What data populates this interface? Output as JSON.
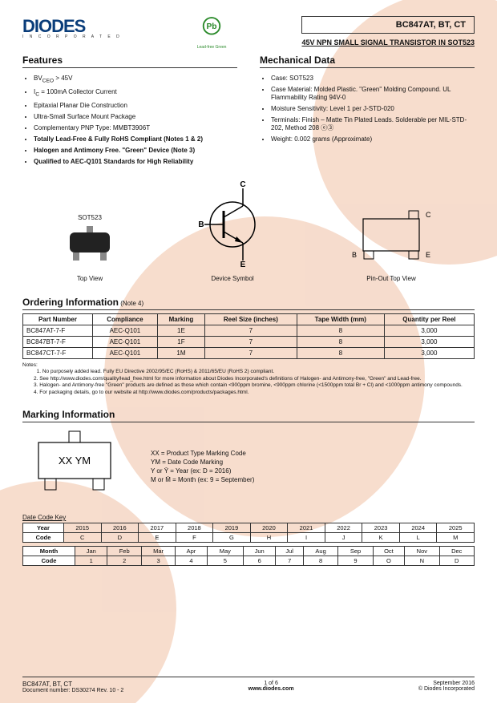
{
  "header": {
    "logo_text": "DIODES",
    "logo_sub": "I N C O R P O R A T E D",
    "pb_label": "Pb",
    "pb_sub": "Lead-free Green",
    "part_title": "BC847AT, BT, CT",
    "subtitle": "45V NPN SMALL SIGNAL TRANSISTOR IN SOT523"
  },
  "features": {
    "title": "Features",
    "items": [
      {
        "html": "BV<sub>CEO</sub> > 45V",
        "bold": false
      },
      {
        "html": "I<sub>C</sub> = 100mA Collector Current",
        "bold": false
      },
      {
        "html": "Epitaxial Planar Die Construction",
        "bold": false
      },
      {
        "html": "Ultra-Small Surface Mount Package",
        "bold": false
      },
      {
        "html": "Complementary PNP Type: MMBT3906T",
        "bold": false
      },
      {
        "html": "Totally Lead-Free & Fully RoHS Compliant (Notes 1 & 2)",
        "bold": true
      },
      {
        "html": "Halogen and Antimony Free. \"Green\" Device (Note 3)",
        "bold": true
      },
      {
        "html": "Qualified to AEC-Q101 Standards for High Reliability",
        "bold": true
      }
    ]
  },
  "mechanical": {
    "title": "Mechanical Data",
    "items": [
      "Case: SOT523",
      "Case Material: Molded Plastic. \"Green\" Molding Compound. UL Flammability Rating 94V-0",
      "Moisture Sensitivity: Level 1 per J-STD-020",
      "Terminals: Finish – Matte Tin Plated Leads. Solderable per MIL-STD-202, Method 208 ⓔ③",
      "Weight: 0.002 grams (Approximate)"
    ]
  },
  "diagrams": {
    "package_label": "SOT523",
    "top_view": "Top View",
    "device_symbol": "Device Symbol",
    "pin_out": "Pin-Out Top View",
    "pins": {
      "c": "C",
      "b": "B",
      "e": "E"
    }
  },
  "ordering": {
    "title": "Ordering Information",
    "note_suffix": "(Note 4)",
    "columns": [
      "Part Number",
      "Compliance",
      "Marking",
      "Reel Size (inches)",
      "Tape Width (mm)",
      "Quantity per Reel"
    ],
    "rows": [
      [
        "BC847AT-7-F",
        "AEC-Q101",
        "1E",
        "7",
        "8",
        "3,000"
      ],
      [
        "BC847BT-7-F",
        "AEC-Q101",
        "1F",
        "7",
        "8",
        "3,000"
      ],
      [
        "BC847CT-7-F",
        "AEC-Q101",
        "1M",
        "7",
        "8",
        "3,000"
      ]
    ],
    "notes_label": "Notes:",
    "notes": [
      "1. No purposely added lead. Fully EU Directive 2002/95/EC (RoHS) & 2011/65/EU (RoHS 2) compliant.",
      "2. See http://www.diodes.com/quality/lead_free.html for more information about Diodes Incorporated's definitions of Halogen- and Antimony-free, \"Green\" and Lead-free.",
      "3. Halogen- and Antimony-free \"Green\" products are defined as those which contain <900ppm bromine, <900ppm chlorine (<1500ppm total Br + Cl) and <1000ppm antimony compounds.",
      "4. For packaging details, go to our website at http://www.diodes.com/products/packages.html."
    ]
  },
  "marking": {
    "title": "Marking Information",
    "code": "XX YM",
    "legend": [
      "XX = Product Type Marking Code",
      "YM = Date Code Marking",
      "Y or Ȳ = Year (ex: D = 2016)",
      "M or M̄ = Month (ex: 9 = September)"
    ],
    "date_code_title": "Date Code Key",
    "year_header": "Year",
    "code_header": "Code",
    "month_header": "Month",
    "years": [
      "2015",
      "2016",
      "2017",
      "2018",
      "2019",
      "2020",
      "2021",
      "2022",
      "2023",
      "2024",
      "2025"
    ],
    "year_codes": [
      "C",
      "D",
      "E",
      "F",
      "G",
      "H",
      "I",
      "J",
      "K",
      "L",
      "M"
    ],
    "months": [
      "Jan",
      "Feb",
      "Mar",
      "Apr",
      "May",
      "Jun",
      "Jul",
      "Aug",
      "Sep",
      "Oct",
      "Nov",
      "Dec"
    ],
    "month_codes": [
      "1",
      "2",
      "3",
      "4",
      "5",
      "6",
      "7",
      "8",
      "9",
      "O",
      "N",
      "D"
    ]
  },
  "footer": {
    "part": "BC847AT, BT, CT",
    "docnum": "Document number: DS30274  Rev. 10 - 2",
    "page": "1 of 6",
    "url": "www.diodes.com",
    "date": "September 2016",
    "copyright": "© Diodes Incorporated"
  },
  "colors": {
    "brand": "#0a3d7a",
    "wm": "#f6d9c8",
    "border": "#333333"
  }
}
